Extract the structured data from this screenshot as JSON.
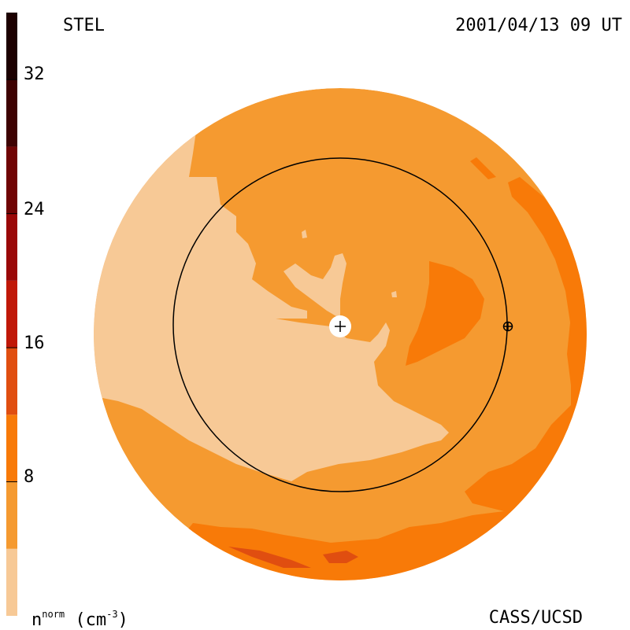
{
  "header": {
    "station": "STEL",
    "datetime": "2001/04/13 09 UT"
  },
  "footer": {
    "credit": "CASS/UCSD",
    "unit_base": "n",
    "unit_sup": "norm",
    "unit_rest": "(cm",
    "unit_exp": "-3",
    "unit_close": ")"
  },
  "colorbar": {
    "ticks": [
      "8",
      "16",
      "24",
      "32"
    ],
    "tick_values": [
      8,
      16,
      24,
      32
    ],
    "range": [
      0,
      36
    ],
    "bins": [
      {
        "from": 0,
        "to": 4,
        "color": "#f7c996"
      },
      {
        "from": 4,
        "to": 8,
        "color": "#f59a30"
      },
      {
        "from": 8,
        "to": 12,
        "color": "#f87a08"
      },
      {
        "from": 12,
        "to": 16,
        "color": "#e04e10"
      },
      {
        "from": 16,
        "to": 20,
        "color": "#c01808"
      },
      {
        "from": 20,
        "to": 24,
        "color": "#9a0808"
      },
      {
        "from": 24,
        "to": 28,
        "color": "#700404"
      },
      {
        "from": 28,
        "to": 32,
        "color": "#3e0202"
      },
      {
        "from": 32,
        "to": 36,
        "color": "#1c0000"
      }
    ]
  },
  "colors": {
    "level1": "#f7c996",
    "level2": "#f59a30",
    "level3": "#f87a08",
    "level4": "#e04e10",
    "outline": "#000000"
  }
}
